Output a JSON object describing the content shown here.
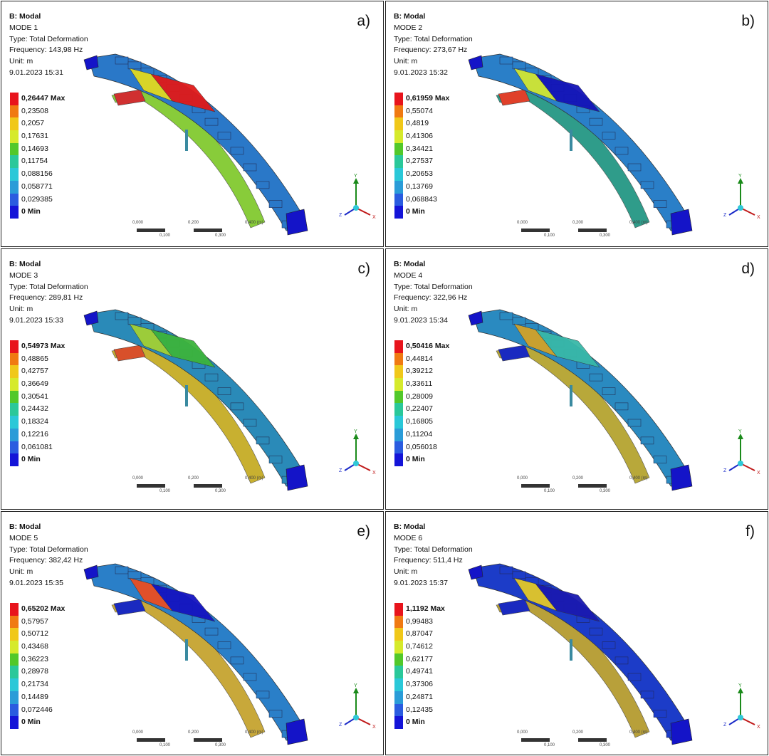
{
  "panels": [
    {
      "label": "a)",
      "title": "B: Modal",
      "mode": "MODE 1",
      "type": "Type: Total Deformation",
      "frequency": "Frequency: 143,98 Hz",
      "unit": "Unit: m",
      "date": "9.01.2023 15:31",
      "legend": [
        "0,26447 Max",
        "0,23508",
        "0,2057",
        "0,17631",
        "0,14693",
        "0,11754",
        "0,088156",
        "0,058771",
        "0,029385",
        "0 Min"
      ],
      "scale": [
        "0,000",
        "0,100",
        "0,200",
        "0,300",
        "0,400 (m)"
      ],
      "triad": {
        "y": "Y",
        "x": "X",
        "z": "Z"
      },
      "palette": {
        "top": "#2a78c8",
        "under": "#88cc3a",
        "hot": "#e01a1a",
        "warm": "#d8d428",
        "tip": "#d03030"
      }
    },
    {
      "label": "b)",
      "title": "B: Modal",
      "mode": "MODE 2",
      "type": "Type: Total Deformation",
      "frequency": "Frequency: 273,67 Hz",
      "unit": "Unit: m",
      "date": "9.01.2023 15:32",
      "legend": [
        "0,61959 Max",
        "0,55074",
        "0,4819",
        "0,41306",
        "0,34421",
        "0,27537",
        "0,20653",
        "0,13769",
        "0,068843",
        "0 Min"
      ],
      "scale": [
        "0,000",
        "0,100",
        "0,200",
        "0,300",
        "0,400 (m)"
      ],
      "triad": {
        "y": "Y",
        "x": "X",
        "z": "Z"
      },
      "palette": {
        "top": "#2a7fc8",
        "under": "#2f9c8a",
        "hot": "#1414b8",
        "warm": "#c8e03a",
        "tip": "#e0402a"
      }
    },
    {
      "label": "c)",
      "title": "B: Modal",
      "mode": "MODE 3",
      "type": "Type: Total Deformation",
      "frequency": "Frequency: 289,81 Hz",
      "unit": "Unit: m",
      "date": "9.01.2023 15:33",
      "legend": [
        "0,54973 Max",
        "0,48865",
        "0,42757",
        "0,36649",
        "0,30541",
        "0,24432",
        "0,18324",
        "0,12216",
        "0,061081",
        "0 Min"
      ],
      "scale": [
        "0,000",
        "0,100",
        "0,200",
        "0,300",
        "0,400 (m)"
      ],
      "triad": {
        "y": "Y",
        "x": "X",
        "z": "Z"
      },
      "palette": {
        "top": "#2a8ab8",
        "under": "#c8b030",
        "hot": "#3cb43c",
        "warm": "#9ccc3a",
        "tip": "#d8502a"
      }
    },
    {
      "label": "d)",
      "title": "B: Modal",
      "mode": "MODE 4",
      "type": "Type: Total Deformation",
      "frequency": "Frequency: 322,96 Hz",
      "unit": "Unit: m",
      "date": "9.01.2023 15:34",
      "legend": [
        "0,50416 Max",
        "0,44814",
        "0,39212",
        "0,33611",
        "0,28009",
        "0,22407",
        "0,16805",
        "0,11204",
        "0,056018",
        "0 Min"
      ],
      "scale": [
        "0,000",
        "0,100",
        "0,200",
        "0,300",
        "0,400 (m)"
      ],
      "triad": {
        "y": "Y",
        "x": "X",
        "z": "Z"
      },
      "palette": {
        "top": "#2a8ac0",
        "under": "#b8a83a",
        "hot": "#38b8a8",
        "warm": "#c8a030",
        "tip": "#1a2ac0"
      }
    },
    {
      "label": "e)",
      "title": "B: Modal",
      "mode": "MODE 5",
      "type": "Type: Total Deformation",
      "frequency": "Frequency: 382,42 Hz",
      "unit": "Unit: m",
      "date": "9.01.2023 15:35",
      "legend": [
        "0,65202 Max",
        "0,57957",
        "0,50712",
        "0,43468",
        "0,36223",
        "0,28978",
        "0,21734",
        "0,14489",
        "0,072446",
        "0 Min"
      ],
      "scale": [
        "0,000",
        "0,100",
        "0,200",
        "0,300",
        "0,400 (m)"
      ],
      "triad": {
        "y": "Y",
        "x": "X",
        "z": "Z"
      },
      "palette": {
        "top": "#2a7fc8",
        "under": "#c8a83a",
        "hot": "#1414c0",
        "warm": "#e0502a",
        "tip": "#1a2ac0"
      }
    },
    {
      "label": "f)",
      "title": "B: Modal",
      "mode": "MODE 6",
      "type": "Type: Total Deformation",
      "frequency": "Frequency: 511,4 Hz",
      "unit": "Unit: m",
      "date": "9.01.2023 15:37",
      "legend": [
        "1,1192 Max",
        "0,99483",
        "0,87047",
        "0,74612",
        "0,62177",
        "0,49741",
        "0,37306",
        "0,24871",
        "0,12435",
        "0 Min"
      ],
      "scale": [
        "0,000",
        "0,100",
        "0,200",
        "0,300",
        "0,400 (m)"
      ],
      "triad": {
        "y": "Y",
        "x": "X",
        "z": "Z"
      },
      "palette": {
        "top": "#1c3cc8",
        "under": "#b8a03a",
        "hot": "#1a1ab0",
        "warm": "#d8c030",
        "tip": "#1a2ac0"
      }
    }
  ],
  "legend_colors": [
    "#e8141c",
    "#f07a12",
    "#f0c81a",
    "#d6ea2c",
    "#52c82a",
    "#2ac89a",
    "#2ac8d8",
    "#2a9cd8",
    "#2a5ce0",
    "#1414d8"
  ]
}
